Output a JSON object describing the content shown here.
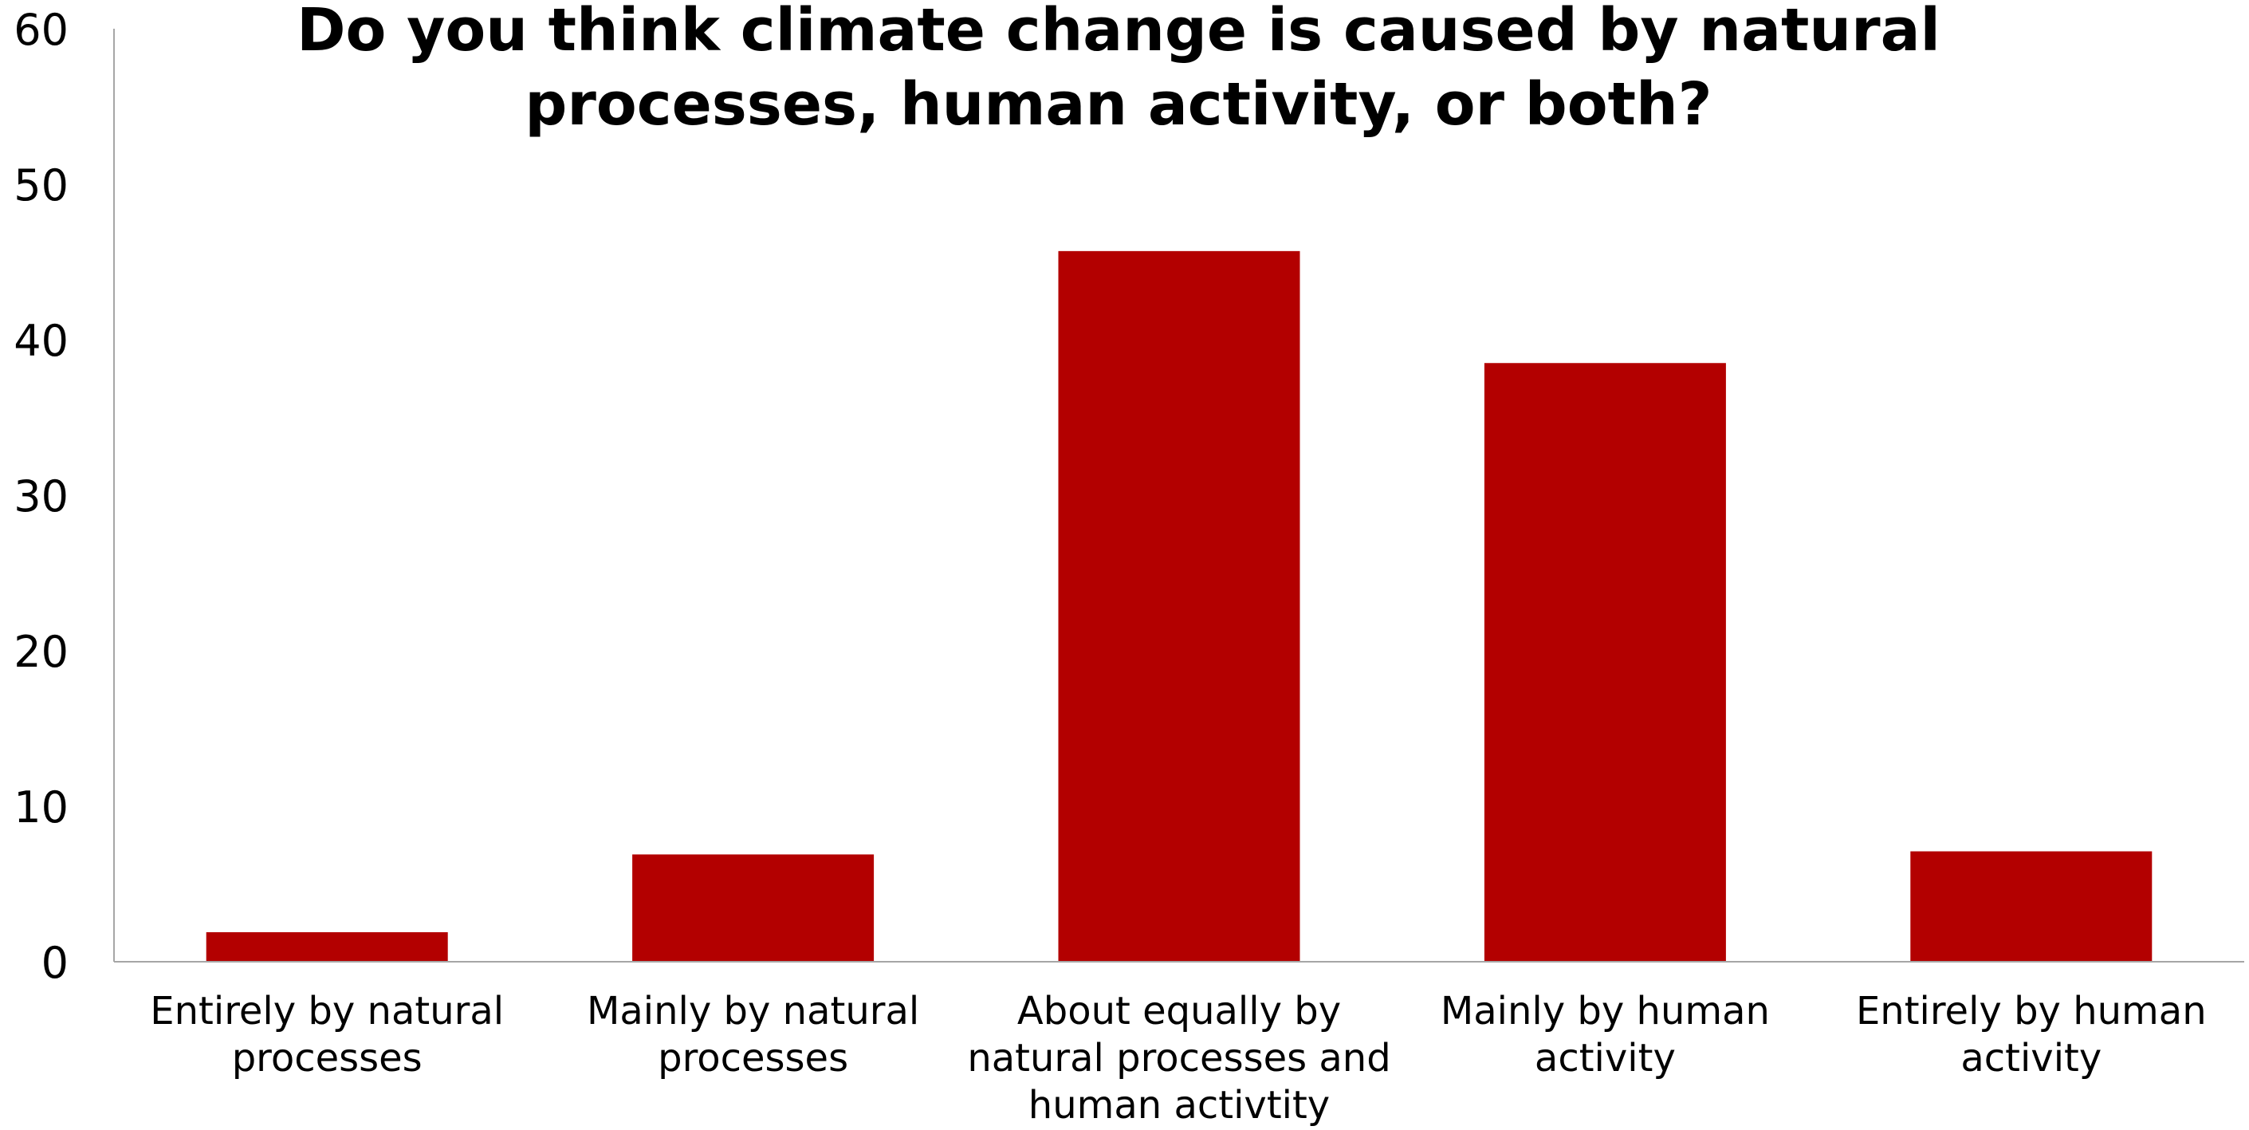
{
  "chart_data": {
    "type": "bar",
    "title_lines": [
      "Do you think climate change is caused by natural",
      "processes, human activity, or both?"
    ],
    "categories": [
      [
        "Entirely by natural",
        "processes"
      ],
      [
        "Mainly by natural",
        "processes"
      ],
      [
        "About equally by",
        "natural processes and",
        "human activtity"
      ],
      [
        "Mainly by human",
        "activity"
      ],
      [
        "Entirely by human",
        "activity"
      ]
    ],
    "values": [
      1.9,
      6.9,
      45.7,
      38.5,
      7.1
    ],
    "ylim": [
      0,
      60
    ],
    "yticks": [
      0,
      10,
      20,
      30,
      40,
      50,
      60
    ],
    "grid": false,
    "legend": "none",
    "bar_color": "#b30000",
    "axis_color": "#a6a6a6"
  }
}
